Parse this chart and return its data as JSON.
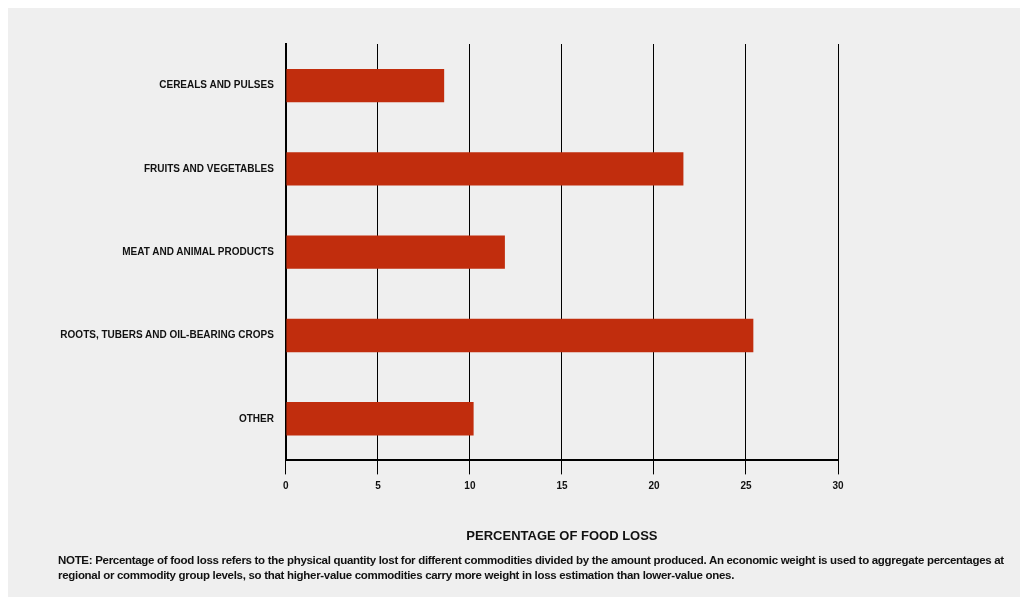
{
  "chart_data": {
    "type": "bar",
    "orientation": "horizontal",
    "categories": [
      "CEREALS AND PULSES",
      "FRUITS AND VEGETABLES",
      "MEAT AND ANIMAL PRODUCTS",
      "ROOTS, TUBERS AND OIL-BEARING CROPS",
      "OTHER"
    ],
    "values": [
      8.6,
      21.6,
      11.9,
      25.4,
      10.2
    ],
    "color": "#c12d0d",
    "xlabel": "PERCENTAGE OF FOOD LOSS",
    "xlim": [
      0,
      30
    ],
    "xticks": [
      0,
      5,
      10,
      15,
      20,
      25,
      30
    ],
    "grid": "x",
    "annotations": [
      "NOTE: Percentage of food loss refers to the physical quantity lost for different commodities divided by the amount produced. An economic weight is used to aggregate percentages at regional or commodity group levels, so that higher-value commodities carry more weight in loss estimation than lower-value ones."
    ]
  }
}
